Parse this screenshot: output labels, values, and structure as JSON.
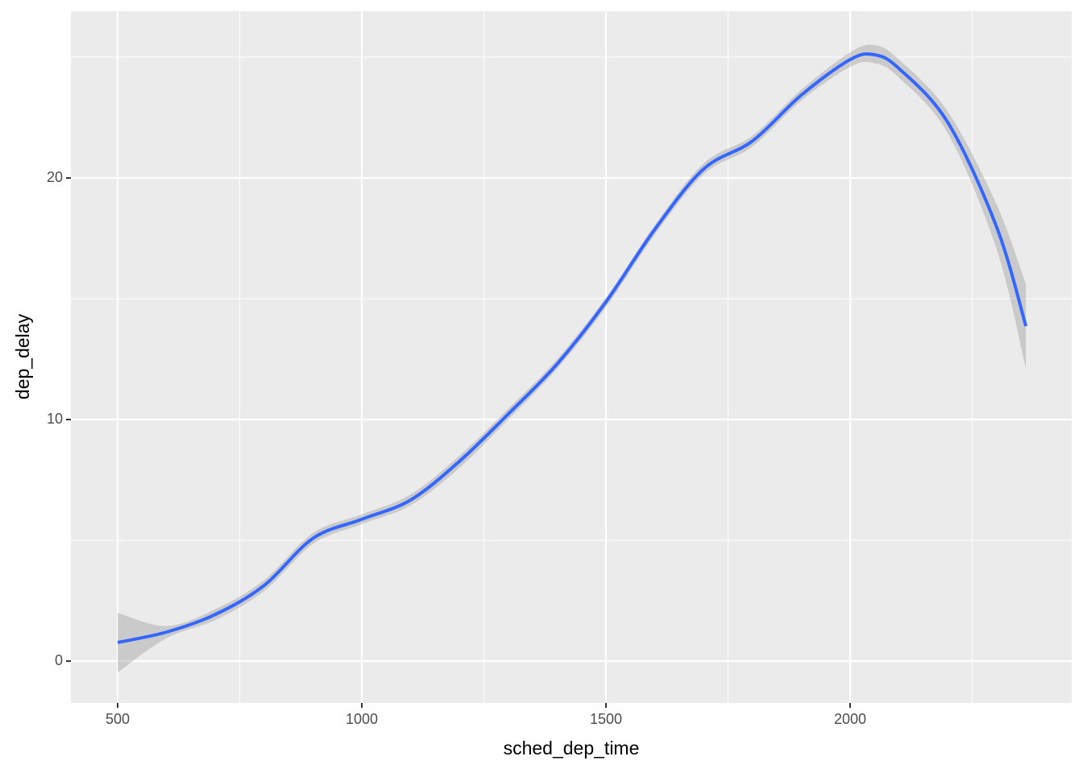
{
  "chart_data": {
    "type": "line",
    "x_label": "sched_dep_time",
    "y_label": "dep_delay",
    "x": [
      500,
      600,
      700,
      800,
      900,
      1000,
      1100,
      1200,
      1300,
      1400,
      1500,
      1600,
      1700,
      1800,
      1900,
      2000,
      2050,
      2100,
      2200,
      2300,
      2360
    ],
    "series": [
      {
        "color": "#3366ff",
        "values": [
          0.77,
          1.2,
          1.93,
          3.13,
          5.08,
          5.87,
          6.67,
          8.27,
          10.23,
          12.3,
          14.87,
          17.87,
          20.37,
          21.53,
          23.43,
          24.9,
          25.1,
          24.53,
          22.3,
          17.97,
          13.87
        ],
        "upper": [
          2.0,
          1.45,
          2.15,
          3.35,
          5.3,
          6.07,
          6.9,
          8.5,
          10.45,
          12.5,
          15.05,
          18.05,
          20.6,
          21.75,
          23.65,
          25.2,
          25.5,
          24.9,
          22.75,
          18.9,
          15.6
        ],
        "lower": [
          -0.47,
          0.95,
          1.7,
          2.9,
          4.85,
          5.67,
          6.45,
          8.0,
          10.0,
          12.1,
          14.65,
          17.65,
          20.15,
          21.3,
          23.2,
          24.6,
          24.75,
          24.15,
          21.85,
          17.05,
          12.1
        ],
        "band_color": "#999999"
      }
    ],
    "xlim": [
      404.3,
      2453.8
    ],
    "ylim": [
      -1.733,
      26.9
    ],
    "xticks": [
      500,
      1000,
      1500,
      2000
    ],
    "yticks": [
      0,
      10,
      20
    ],
    "x_minor_ticks": [
      750,
      1250,
      1750,
      2250
    ],
    "y_minor_ticks": [
      5,
      15,
      25
    ],
    "grid": true,
    "panel_color": "#ebebeb"
  }
}
